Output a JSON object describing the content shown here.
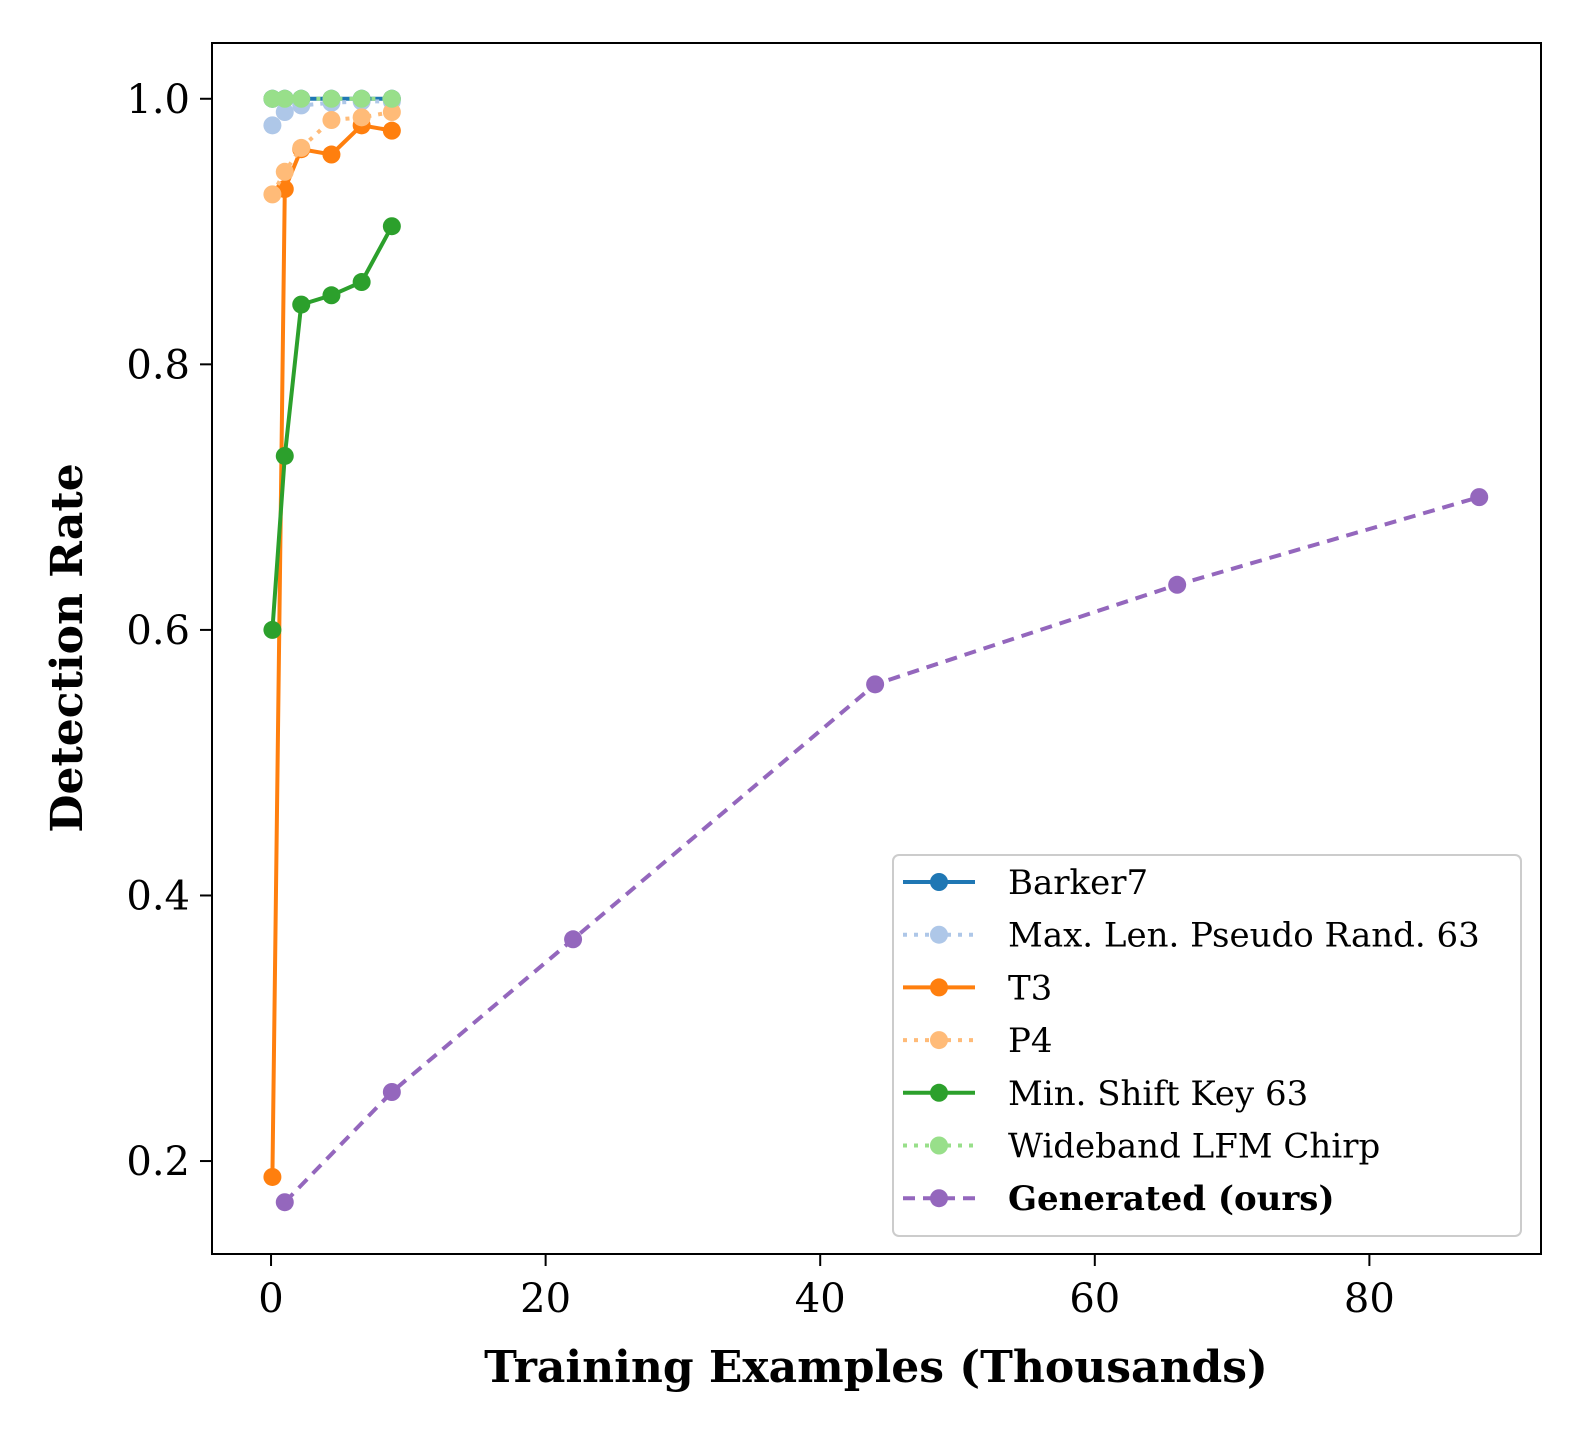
{
  "chart_data": {
    "type": "line",
    "xlabel": "Training Examples (Thousands)",
    "ylabel": "Detection Rate",
    "xlim": [
      -4.3,
      92.5
    ],
    "ylim": [
      0.13,
      1.042
    ],
    "xticks": [
      0,
      20,
      40,
      60,
      80
    ],
    "xtick_labels": [
      "0",
      "20",
      "40",
      "60",
      "80"
    ],
    "yticks": [
      0.2,
      0.4,
      0.6,
      0.8,
      1.0
    ],
    "ytick_labels": [
      "0.2",
      "0.4",
      "0.6",
      "0.8",
      "1.0"
    ],
    "grid": false,
    "legend_position": "lower-right",
    "series": [
      {
        "name": "Barker7",
        "color": "#1f77b4",
        "dash": "solid",
        "bold": false,
        "x": [
          0.1,
          1.0,
          2.2,
          4.4,
          6.6,
          8.8
        ],
        "y": [
          1.0,
          1.0,
          1.0,
          1.0,
          1.0,
          1.0
        ]
      },
      {
        "name": "Max. Len. Pseudo Rand. 63",
        "color": "#aec7e8",
        "dash": "dotted",
        "bold": false,
        "x": [
          0.1,
          1.0,
          2.2,
          4.4,
          6.6,
          8.8
        ],
        "y": [
          0.98,
          0.99,
          0.995,
          0.997,
          0.998,
          0.998
        ]
      },
      {
        "name": "T3",
        "color": "#ff7f0e",
        "dash": "solid",
        "bold": false,
        "x": [
          0.1,
          1.0,
          2.2,
          4.4,
          6.6,
          8.8
        ],
        "y": [
          0.188,
          0.932,
          0.962,
          0.958,
          0.98,
          0.976
        ]
      },
      {
        "name": "P4",
        "color": "#ffbb78",
        "dash": "dotted",
        "bold": false,
        "x": [
          0.1,
          1.0,
          2.2,
          4.4,
          6.6,
          8.8
        ],
        "y": [
          0.928,
          0.945,
          0.963,
          0.984,
          0.986,
          0.99
        ]
      },
      {
        "name": "Min. Shift Key 63",
        "color": "#2ca02c",
        "dash": "solid",
        "bold": false,
        "x": [
          0.1,
          1.0,
          2.2,
          4.4,
          6.6,
          8.8
        ],
        "y": [
          0.6,
          0.731,
          0.845,
          0.852,
          0.862,
          0.904
        ]
      },
      {
        "name": "Wideband LFM Chirp",
        "color": "#98df8a",
        "dash": "dotted",
        "bold": false,
        "x": [
          0.1,
          1.0,
          2.2,
          4.4,
          6.6,
          8.8
        ],
        "y": [
          1.0,
          1.0,
          1.0,
          1.0,
          1.0,
          1.0
        ]
      },
      {
        "name": "Generated (ours)",
        "color": "#9467bd",
        "dash": "dashed",
        "bold": true,
        "x": [
          1.0,
          8.8,
          22.0,
          44.0,
          66.0,
          88.0
        ],
        "y": [
          0.169,
          0.252,
          0.367,
          0.559,
          0.634,
          0.7
        ]
      }
    ]
  }
}
